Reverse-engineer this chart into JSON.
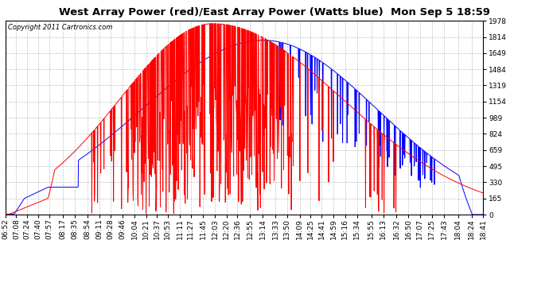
{
  "title": "West Array Power (red)/East Array Power (Watts blue)  Mon Sep 5 18:59",
  "copyright": "Copyright 2011 Cartronics.com",
  "background_color": "#ffffff",
  "plot_bg_color": "#ffffff",
  "grid_color": "#b0b0b0",
  "yticks": [
    0.0,
    164.9,
    329.7,
    494.6,
    659.4,
    824.3,
    989.2,
    1154.0,
    1318.9,
    1483.7,
    1648.6,
    1813.5,
    1978.3
  ],
  "ylim": [
    0,
    1978.3
  ],
  "west_color": "red",
  "east_color": "blue",
  "linewidth": 0.7,
  "title_fontsize": 9.5,
  "tick_fontsize": 6.5,
  "copyright_fontsize": 6,
  "figsize": [
    6.9,
    3.75
  ],
  "dpi": 100
}
